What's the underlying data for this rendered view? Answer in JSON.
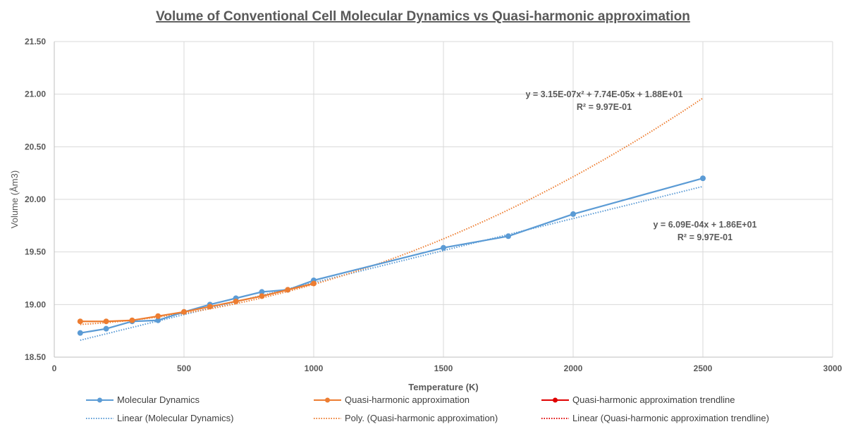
{
  "chart_data": {
    "type": "line",
    "title": "Volume of Conventional Cell Molecular Dynamics vs Quasi-harmonic approximation",
    "xlabel": "Temperature (K)",
    "ylabel": "Volume (Åm3)",
    "xlim": [
      0,
      3000
    ],
    "ylim": [
      18.5,
      21.5
    ],
    "x_ticks": [
      "0",
      "500",
      "1000",
      "1500",
      "2000",
      "2500",
      "3000"
    ],
    "x_tick_values": [
      0,
      500,
      1000,
      1500,
      2000,
      2500,
      3000
    ],
    "y_ticks": [
      "18.50",
      "19.00",
      "19.50",
      "20.00",
      "20.50",
      "21.00",
      "21.50"
    ],
    "y_tick_values": [
      18.5,
      19.0,
      19.5,
      20.0,
      20.5,
      21.0,
      21.5
    ],
    "grid": true,
    "legend_position": "bottom",
    "series": [
      {
        "name": "Molecular Dynamics",
        "color": "#5B9BD5",
        "style": "line-marker",
        "x": [
          100,
          200,
          300,
          400,
          500,
          600,
          700,
          800,
          900,
          1000,
          1500,
          1750,
          2000,
          2500
        ],
        "y": [
          18.73,
          18.77,
          18.84,
          18.85,
          18.93,
          19.0,
          19.06,
          19.12,
          19.14,
          19.23,
          19.54,
          19.65,
          19.86,
          20.2
        ]
      },
      {
        "name": "Quasi-harmonic approximation",
        "color": "#ED7D31",
        "style": "line-marker",
        "x": [
          100,
          200,
          300,
          400,
          500,
          600,
          700,
          800,
          900,
          1000
        ],
        "y": [
          18.84,
          18.84,
          18.85,
          18.89,
          18.93,
          18.98,
          19.03,
          19.08,
          19.14,
          19.2
        ]
      },
      {
        "name": "Quasi-harmonic approximation trendline",
        "color": "#E00000",
        "style": "line-marker",
        "x": [],
        "y": []
      }
    ],
    "trendlines": [
      {
        "name": "Linear (Molecular Dynamics)",
        "color": "#5B9BD5",
        "type": "linear",
        "coefficients": [
          0.000609,
          18.6
        ],
        "x_range": [
          100,
          2500
        ],
        "equation": "y = 6.09E-04x + 1.86E+01",
        "r2": "R² = 9.97E-01"
      },
      {
        "name": "Poly. (Quasi-harmonic approximation)",
        "color": "#ED7D31",
        "type": "polynomial",
        "coefficients": [
          3.15e-07,
          7.74e-05,
          18.8
        ],
        "x_range": [
          100,
          2500
        ],
        "equation": "y = 3.15E-07x² + 7.74E-05x + 1.88E+01",
        "r2": "R² = 9.97E-01"
      },
      {
        "name": "Linear (Quasi-harmonic approximation trendline)",
        "color": "#E00000",
        "type": "linear",
        "coefficients": [],
        "x_range": []
      }
    ],
    "legend": [
      {
        "label": "Molecular Dynamics",
        "color": "#5B9BD5",
        "style": "line-marker"
      },
      {
        "label": "Quasi-harmonic approximation",
        "color": "#ED7D31",
        "style": "line-marker"
      },
      {
        "label": "Quasi-harmonic approximation trendline",
        "color": "#E00000",
        "style": "line-marker"
      },
      {
        "label": "Linear (Molecular Dynamics)",
        "color": "#5B9BD5",
        "style": "dotted"
      },
      {
        "label": "Poly. (Quasi-harmonic approximation)",
        "color": "#ED7D31",
        "style": "dotted"
      },
      {
        "label": "Linear (Quasi-harmonic approximation trendline)",
        "color": "#E00000",
        "style": "dotted"
      }
    ]
  }
}
